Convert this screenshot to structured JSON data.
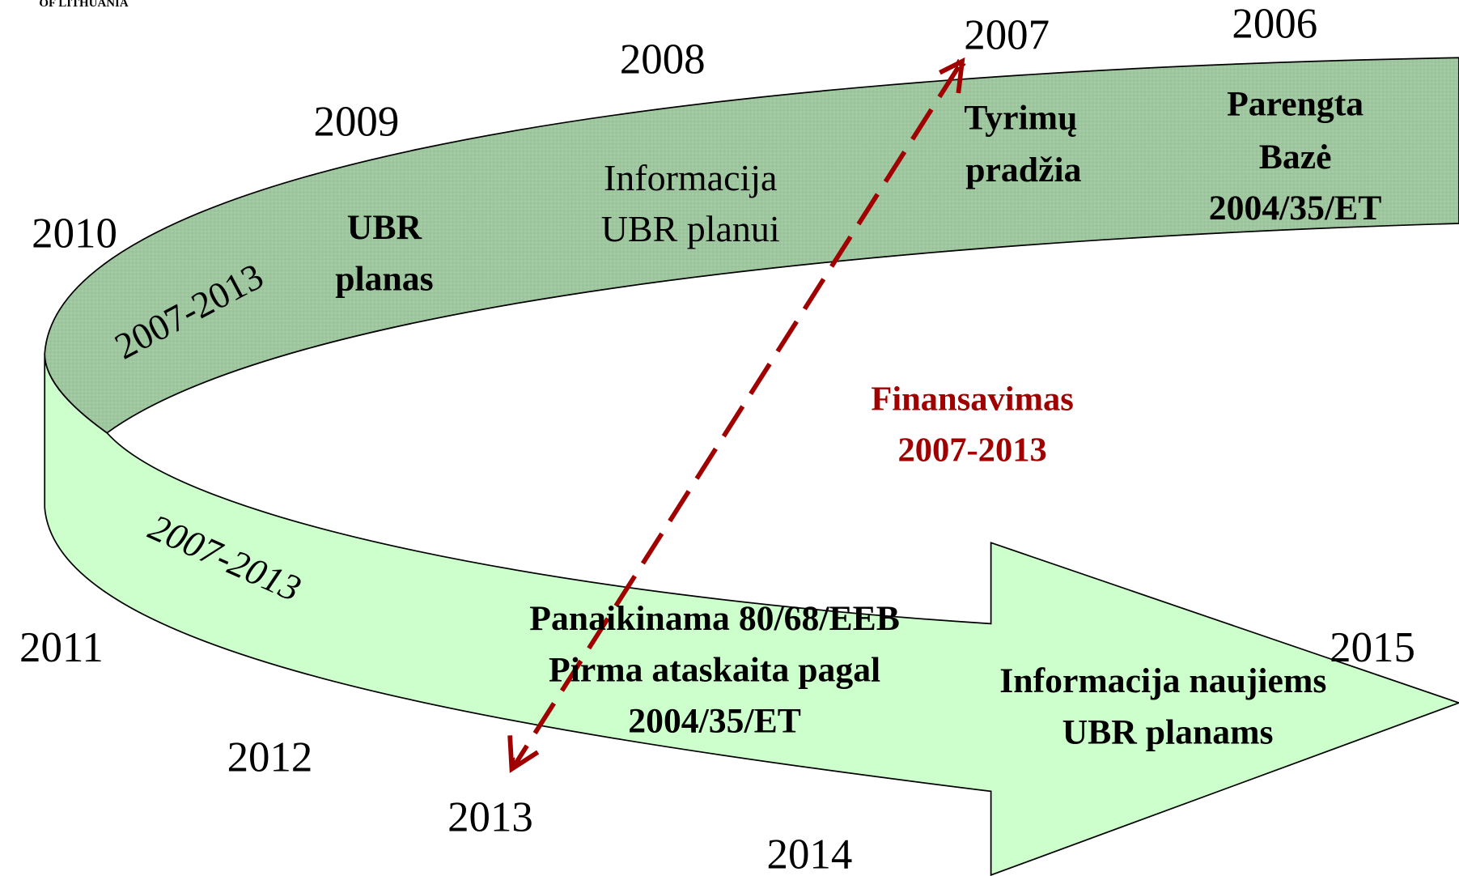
{
  "header": "OF LITHUANIA",
  "years": [
    "2006",
    "2007",
    "2008",
    "2009",
    "2010",
    "2011",
    "2012",
    "2013",
    "2014",
    "2015"
  ],
  "top_band": {
    "period": "2007-2013",
    "parengta": [
      "Parengta",
      "Bazė",
      "2004/35/ET"
    ],
    "tyrimu": [
      "Tyrimų",
      "pradžia"
    ],
    "informacija": [
      "Informacija",
      "UBR planui"
    ],
    "ubr": [
      "UBR",
      "planas"
    ]
  },
  "bottom_band": {
    "period": "2007-2013",
    "panaikinama": [
      "Panaikinama 80/68/EEB",
      "Pirma ataskaita pagal",
      "2004/35/ET"
    ],
    "naujiems": [
      "Informacija naujiems",
      "UBR planams"
    ]
  },
  "funding": [
    "Finansavimas",
    "2007-2013"
  ]
}
